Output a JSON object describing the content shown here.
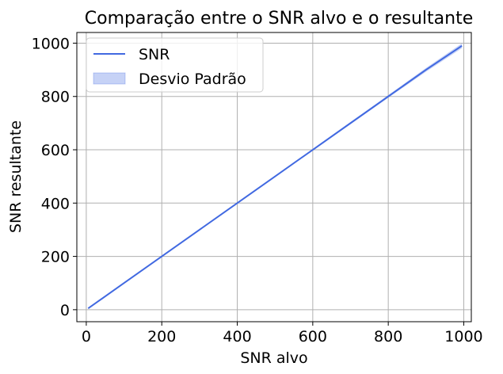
{
  "chart_data": {
    "type": "line",
    "title": "Comparação entre o SNR alvo e o resultante",
    "xlabel": "SNR alvo",
    "ylabel": "SNR resultante",
    "xlim": [
      -25,
      1020
    ],
    "ylim": [
      -45,
      1040
    ],
    "xticks": [
      0,
      200,
      400,
      600,
      800,
      1000
    ],
    "yticks": [
      0,
      200,
      400,
      600,
      800,
      1000
    ],
    "grid": true,
    "legend_position": "top-left",
    "series": [
      {
        "name": "SNR",
        "type": "line",
        "color": "#4169e1",
        "x": [
          5,
          100,
          200,
          300,
          400,
          500,
          600,
          700,
          800,
          900,
          995
        ],
        "y": [
          5,
          100,
          200,
          300,
          400,
          500,
          600,
          700,
          800,
          900,
          990
        ]
      },
      {
        "name": "Desvio Padrão",
        "type": "band",
        "color": "#4169e1",
        "x": [
          5,
          100,
          200,
          300,
          400,
          500,
          600,
          700,
          800,
          900,
          995
        ],
        "lower": [
          4,
          99,
          199,
          299,
          398,
          498,
          597,
          696,
          795,
          893,
          981
        ],
        "upper": [
          6,
          101,
          201,
          301,
          402,
          502,
          603,
          704,
          805,
          907,
          999
        ]
      }
    ]
  }
}
